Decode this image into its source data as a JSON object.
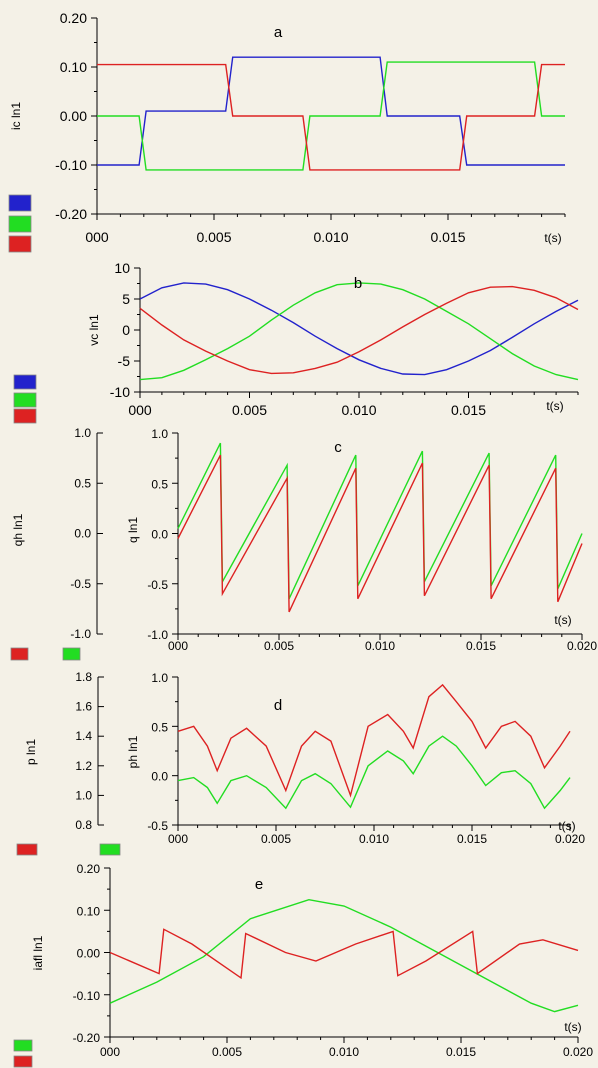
{
  "colors": {
    "blue": "#2222cc",
    "green": "#22dd22",
    "red": "#dd2222",
    "background": "#f4f1e7"
  },
  "chart_data": [
    {
      "type": "line",
      "panel": "a",
      "ylabel": "ic ln1",
      "xunit": "t(s)",
      "xticks": [
        "000",
        "0.005",
        "0.010",
        "0.015"
      ],
      "yticks": [
        "0.20",
        "0.10",
        "0.00",
        "-0.10",
        "-0.20"
      ],
      "xlim": [
        0,
        0.02
      ],
      "ylim": [
        -0.2,
        0.2
      ],
      "legend_colors": [
        "#2222cc",
        "#22dd22",
        "#dd2222"
      ],
      "series": [
        {
          "color": "#2222cc",
          "x": [
            0,
            0.0018,
            0.0021,
            0.0055,
            0.0058,
            0.0121,
            0.0124,
            0.0155,
            0.0158,
            0.02
          ],
          "y": [
            -0.1,
            -0.1,
            0.01,
            0.01,
            0.12,
            0.12,
            0.0,
            0.0,
            -0.1,
            -0.1
          ]
        },
        {
          "color": "#22dd22",
          "x": [
            0,
            0.0018,
            0.0021,
            0.0088,
            0.0091,
            0.0121,
            0.0124,
            0.0187,
            0.019,
            0.02
          ],
          "y": [
            0.0,
            0.0,
            -0.11,
            -0.11,
            0.0,
            0.0,
            0.11,
            0.11,
            0.0,
            0.0
          ]
        },
        {
          "color": "#dd2222",
          "x": [
            0,
            0.0055,
            0.0058,
            0.0088,
            0.0091,
            0.0155,
            0.0158,
            0.0187,
            0.019,
            0.02
          ],
          "y": [
            0.105,
            0.105,
            0.0,
            0.0,
            -0.11,
            -0.11,
            0.0,
            0.0,
            0.105,
            0.105
          ]
        }
      ]
    },
    {
      "type": "line",
      "panel": "b",
      "ylabel": "vc ln1",
      "xunit": "t(s)",
      "xticks": [
        "000",
        "0.005",
        "0.010",
        "0.015"
      ],
      "yticks": [
        "10",
        "5",
        "0",
        "-5",
        "-10"
      ],
      "xlim": [
        0,
        0.02
      ],
      "ylim": [
        -10,
        10
      ],
      "legend_colors": [
        "#2222cc",
        "#22dd22",
        "#dd2222"
      ],
      "series": [
        {
          "color": "#2222cc",
          "x": [
            0,
            0.001,
            0.002,
            0.003,
            0.004,
            0.005,
            0.006,
            0.007,
            0.008,
            0.009,
            0.01,
            0.011,
            0.012,
            0.013,
            0.014,
            0.015,
            0.016,
            0.017,
            0.018,
            0.019,
            0.02
          ],
          "y": [
            5.0,
            6.8,
            7.6,
            7.4,
            6.5,
            5.0,
            3.2,
            1.2,
            -1.0,
            -3.0,
            -4.8,
            -6.2,
            -7.1,
            -7.2,
            -6.4,
            -5.0,
            -3.3,
            -1.2,
            1.0,
            3.0,
            4.8
          ]
        },
        {
          "color": "#22dd22",
          "x": [
            0,
            0.001,
            0.002,
            0.003,
            0.004,
            0.005,
            0.006,
            0.007,
            0.008,
            0.009,
            0.01,
            0.011,
            0.012,
            0.013,
            0.014,
            0.015,
            0.016,
            0.017,
            0.018,
            0.019,
            0.02
          ],
          "y": [
            -8.0,
            -7.7,
            -6.5,
            -4.8,
            -3.0,
            -1.0,
            1.6,
            4.0,
            6.0,
            7.3,
            7.6,
            7.4,
            6.5,
            5.0,
            3.0,
            1.0,
            -1.4,
            -3.8,
            -5.8,
            -7.2,
            -8.0
          ]
        },
        {
          "color": "#dd2222",
          "x": [
            0,
            0.001,
            0.002,
            0.003,
            0.004,
            0.005,
            0.006,
            0.007,
            0.008,
            0.009,
            0.01,
            0.011,
            0.012,
            0.013,
            0.014,
            0.015,
            0.016,
            0.017,
            0.018,
            0.019,
            0.02
          ],
          "y": [
            3.5,
            0.8,
            -1.6,
            -3.4,
            -5.0,
            -6.4,
            -7.0,
            -6.9,
            -6.2,
            -5.2,
            -3.5,
            -1.6,
            0.5,
            2.5,
            4.3,
            6.0,
            6.9,
            7.0,
            6.4,
            5.2,
            3.3
          ]
        }
      ]
    },
    {
      "type": "line",
      "panel": "c",
      "ylabel_left": "qh ln1",
      "ylabel": "q ln1",
      "xunit": "t(s)",
      "xticks": [
        "000",
        "0.005",
        "0.010",
        "0.015",
        "0.020"
      ],
      "yticks": [
        "1.0",
        "0.5",
        "0.0",
        "-0.5",
        "-1.0"
      ],
      "yticks_left": [
        "1.0",
        "0.5",
        "0.0",
        "-0.5",
        "-1.0"
      ],
      "xlim": [
        0,
        0.02
      ],
      "ylim": [
        -1,
        1
      ],
      "legend_colors": [
        "#dd2222",
        "#22dd22"
      ],
      "series": [
        {
          "color": "#22dd22",
          "x": [
            0,
            0.0021,
            0.0022,
            0.0054,
            0.0055,
            0.0088,
            0.0089,
            0.0121,
            0.0122,
            0.0154,
            0.0155,
            0.0187,
            0.0188,
            0.02
          ],
          "y": [
            0.05,
            0.9,
            -0.48,
            0.68,
            -0.65,
            0.78,
            -0.52,
            0.82,
            -0.48,
            0.8,
            -0.52,
            0.78,
            -0.55,
            0.0
          ]
        },
        {
          "color": "#dd2222",
          "x": [
            0,
            0.0021,
            0.0022,
            0.0054,
            0.0055,
            0.0088,
            0.0089,
            0.0121,
            0.0122,
            0.0154,
            0.0155,
            0.0187,
            0.0188,
            0.02
          ],
          "y": [
            -0.05,
            0.78,
            -0.6,
            0.55,
            -0.78,
            0.65,
            -0.65,
            0.7,
            -0.62,
            0.68,
            -0.65,
            0.65,
            -0.68,
            -0.1
          ]
        }
      ]
    },
    {
      "type": "line",
      "panel": "d",
      "ylabel_left": "p ln1",
      "ylabel": "ph ln1",
      "xunit": "t(s)",
      "xticks": [
        "000",
        "0.005",
        "0.010",
        "0.015",
        "0.020"
      ],
      "yticks": [
        "1.0",
        "0.5",
        "0.0",
        "-0.5"
      ],
      "yticks_left": [
        "1.8",
        "1.6",
        "1.4",
        "1.2",
        "1.0",
        "0.8"
      ],
      "xlim": [
        0,
        0.02
      ],
      "ylim": [
        -0.5,
        1.0
      ],
      "legend_colors": [
        "#dd2222",
        "#22dd22"
      ],
      "series": [
        {
          "color": "#dd2222",
          "x": [
            0,
            0.0008,
            0.0015,
            0.002,
            0.0027,
            0.0035,
            0.0045,
            0.0055,
            0.0063,
            0.007,
            0.0078,
            0.0088,
            0.0097,
            0.0107,
            0.0115,
            0.012,
            0.0128,
            0.0135,
            0.0142,
            0.015,
            0.0157,
            0.0165,
            0.0172,
            0.018,
            0.0187,
            0.0195,
            0.02
          ],
          "y": [
            0.45,
            0.5,
            0.3,
            0.05,
            0.38,
            0.48,
            0.3,
            -0.15,
            0.3,
            0.45,
            0.35,
            -0.2,
            0.5,
            0.62,
            0.45,
            0.28,
            0.8,
            0.92,
            0.75,
            0.55,
            0.28,
            0.5,
            0.55,
            0.4,
            0.08,
            0.3,
            0.45
          ]
        },
        {
          "color": "#22dd22",
          "x": [
            0,
            0.0008,
            0.0015,
            0.002,
            0.0027,
            0.0035,
            0.0045,
            0.0055,
            0.0063,
            0.007,
            0.0078,
            0.0088,
            0.0097,
            0.0107,
            0.0115,
            0.012,
            0.0128,
            0.0135,
            0.0142,
            0.015,
            0.0157,
            0.0165,
            0.0172,
            0.018,
            0.0187,
            0.0195,
            0.02
          ],
          "y": [
            -0.05,
            -0.02,
            -0.12,
            -0.28,
            -0.05,
            0.0,
            -0.12,
            -0.33,
            -0.05,
            0.02,
            -0.08,
            -0.32,
            0.1,
            0.25,
            0.15,
            0.02,
            0.3,
            0.4,
            0.3,
            0.1,
            -0.1,
            0.03,
            0.05,
            -0.08,
            -0.33,
            -0.15,
            -0.02
          ]
        }
      ]
    },
    {
      "type": "line",
      "panel": "e",
      "ylabel": "iafl ln1",
      "xunit": "t(s)",
      "xticks": [
        "000",
        "0.005",
        "0.010",
        "0.015",
        "0.020"
      ],
      "yticks": [
        "0.20",
        "0.10",
        "0.00",
        "-0.10",
        "-0.20"
      ],
      "xlim": [
        0,
        0.02
      ],
      "ylim": [
        -0.2,
        0.2
      ],
      "legend_colors": [
        "#22dd22",
        "#dd2222"
      ],
      "series": [
        {
          "color": "#22dd22",
          "x": [
            0,
            0.002,
            0.004,
            0.006,
            0.0085,
            0.01,
            0.012,
            0.014,
            0.016,
            0.018,
            0.019,
            0.02
          ],
          "y": [
            -0.12,
            -0.07,
            -0.01,
            0.08,
            0.125,
            0.11,
            0.06,
            0.0,
            -0.06,
            -0.12,
            -0.14,
            -0.125
          ]
        },
        {
          "color": "#dd2222",
          "x": [
            0,
            0.0021,
            0.0023,
            0.0035,
            0.0056,
            0.0058,
            0.0075,
            0.0088,
            0.0105,
            0.0121,
            0.0123,
            0.0135,
            0.0155,
            0.0157,
            0.0175,
            0.0185,
            0.02
          ],
          "y": [
            0.0,
            -0.05,
            0.055,
            0.02,
            -0.06,
            0.045,
            0.0,
            -0.02,
            0.02,
            0.05,
            -0.055,
            -0.02,
            0.05,
            -0.05,
            0.02,
            0.03,
            0.005
          ]
        }
      ]
    }
  ],
  "panel_letters": [
    "a",
    "b",
    "c",
    "d",
    "e"
  ]
}
